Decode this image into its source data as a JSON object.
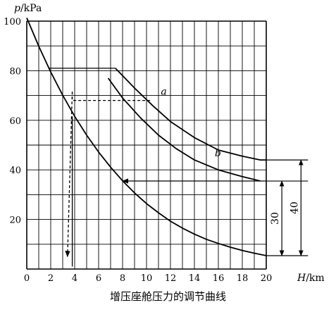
{
  "chart_data": {
    "type": "line",
    "title": "增压座舱压力的调节曲线",
    "xlabel_var": "H",
    "xlabel_unit": "/km",
    "ylabel_var": "p",
    "ylabel_unit": "/kPa",
    "xlim": [
      0,
      20
    ],
    "ylim": [
      0,
      100
    ],
    "x_ticks": [
      0,
      2,
      4,
      6,
      8,
      10,
      12,
      14,
      16,
      18,
      20
    ],
    "y_ticks": [
      20,
      40,
      60,
      80,
      100
    ],
    "grid": true,
    "series": [
      {
        "label": "",
        "x": [
          0,
          1,
          2,
          3,
          4,
          5,
          6,
          7,
          8,
          9,
          10,
          11,
          12,
          13,
          14,
          15,
          16,
          17,
          18,
          19,
          20
        ],
        "values": [
          101.3,
          89.9,
          79.5,
          70.1,
          61.6,
          54.0,
          47.2,
          41.1,
          35.6,
          30.7,
          26.4,
          22.7,
          19.3,
          16.5,
          14.1,
          12.0,
          10.3,
          8.8,
          7.5,
          6.4,
          5.4
        ]
      },
      {
        "label": "a",
        "x": [
          7.4,
          9,
          10.5,
          12,
          14,
          16,
          18,
          19.5,
          20
        ],
        "values": [
          81,
          73,
          66,
          59.5,
          53,
          48,
          45.5,
          44,
          44
        ]
      },
      {
        "label": "b",
        "x": [
          6.8,
          8,
          9.5,
          11,
          12.5,
          14,
          16,
          18,
          19.5
        ],
        "values": [
          77,
          69,
          61,
          54,
          48.5,
          44,
          40,
          37.3,
          35.5
        ]
      }
    ],
    "guides": [
      {
        "points": [
          [
            1.8,
            81
          ],
          [
            7.4,
            81
          ]
        ],
        "dashed": false,
        "arrow": false
      },
      {
        "points": [
          [
            10.3,
            68
          ],
          [
            3.8,
            68
          ],
          [
            3.8,
            72
          ],
          [
            3.4,
            5
          ]
        ],
        "dashed": true,
        "arrow": true
      },
      {
        "points": [
          [
            20,
            35.5
          ],
          [
            8,
            35.5
          ]
        ],
        "dashed": false,
        "arrow": true
      },
      {
        "points": [
          [
            3.8,
            61.6
          ],
          [
            3.8,
            1
          ]
        ],
        "dashed": false,
        "arrow": false
      }
    ],
    "dimensions": [
      {
        "label": "30",
        "from": 35.5,
        "to": 5.4,
        "x": 21.3
      },
      {
        "label": "40",
        "from": 44,
        "to": 5.4,
        "x": 22.9
      }
    ]
  }
}
